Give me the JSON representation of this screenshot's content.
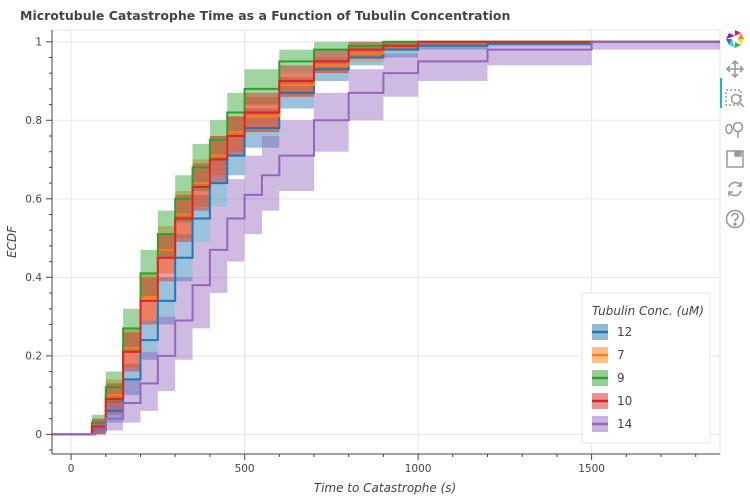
{
  "chart_data": {
    "type": "line",
    "title": "Microtubule Catastrophe Time as a Function of Tubulin Concentration",
    "xlabel": "Time to Catastrophe (s)",
    "ylabel": "ECDF",
    "xlim": [
      -55,
      1870
    ],
    "ylim": [
      -0.05,
      1.03
    ],
    "xticks": [
      0,
      500,
      1000,
      1500
    ],
    "xtick_labels": [
      "0",
      "500",
      "1000",
      "1500"
    ],
    "yticks": [
      0,
      0.2,
      0.4,
      0.6,
      0.8,
      1
    ],
    "ytick_labels": [
      "0",
      "0.2",
      "0.4",
      "0.6",
      "0.8",
      "1"
    ],
    "grid": true,
    "legend": {
      "title": "Tubulin Conc. (uM)",
      "placement": "bottom-right"
    },
    "series": [
      {
        "name": "12",
        "color": "#1f77b4",
        "band_color": "#1f77b4",
        "x": [
          -55,
          40,
          60,
          100,
          150,
          200,
          250,
          300,
          350,
          400,
          450,
          500,
          600,
          700,
          800,
          900,
          1000,
          1200,
          1500,
          1870
        ],
        "y": [
          0,
          0,
          0.01,
          0.06,
          0.14,
          0.24,
          0.34,
          0.45,
          0.55,
          0.64,
          0.71,
          0.78,
          0.87,
          0.93,
          0.96,
          0.98,
          0.99,
          0.995,
          1,
          1
        ],
        "lower": [
          0,
          0,
          0,
          0.03,
          0.1,
          0.19,
          0.28,
          0.39,
          0.49,
          0.58,
          0.66,
          0.73,
          0.83,
          0.9,
          0.94,
          0.96,
          0.98,
          0.99,
          0.998,
          1
        ],
        "upper": [
          0,
          0,
          0.02,
          0.09,
          0.18,
          0.29,
          0.4,
          0.51,
          0.61,
          0.7,
          0.77,
          0.83,
          0.91,
          0.96,
          0.98,
          0.99,
          1,
          1,
          1,
          1
        ]
      },
      {
        "name": "7",
        "color": "#ff7f0e",
        "band_color": "#ff7f0e",
        "x": [
          -55,
          40,
          60,
          100,
          150,
          200,
          250,
          300,
          350,
          400,
          450,
          500,
          600,
          700,
          800,
          900,
          1000,
          1200,
          1500,
          1870
        ],
        "y": [
          0,
          0,
          0.02,
          0.1,
          0.22,
          0.35,
          0.47,
          0.56,
          0.64,
          0.71,
          0.77,
          0.81,
          0.89,
          0.94,
          0.97,
          0.99,
          1,
          1,
          1,
          1
        ],
        "lower": [
          0,
          0,
          0,
          0.06,
          0.17,
          0.29,
          0.41,
          0.5,
          0.58,
          0.66,
          0.72,
          0.77,
          0.86,
          0.92,
          0.95,
          0.98,
          0.99,
          1,
          1,
          1
        ],
        "upper": [
          0,
          0,
          0.04,
          0.14,
          0.27,
          0.41,
          0.53,
          0.62,
          0.7,
          0.76,
          0.81,
          0.86,
          0.92,
          0.96,
          0.99,
          1,
          1,
          1,
          1,
          1
        ]
      },
      {
        "name": "9",
        "color": "#2ca02c",
        "band_color": "#2ca02c",
        "x": [
          -55,
          40,
          60,
          100,
          150,
          200,
          250,
          300,
          350,
          400,
          450,
          500,
          600,
          700,
          800,
          900,
          1000,
          1200,
          1500,
          1870
        ],
        "y": [
          0,
          0,
          0.03,
          0.12,
          0.27,
          0.41,
          0.51,
          0.6,
          0.68,
          0.75,
          0.82,
          0.88,
          0.95,
          0.98,
          0.99,
          1,
          1,
          1,
          1,
          1
        ],
        "lower": [
          0,
          0,
          0.01,
          0.08,
          0.21,
          0.35,
          0.45,
          0.54,
          0.62,
          0.7,
          0.77,
          0.84,
          0.92,
          0.96,
          0.98,
          0.99,
          1,
          1,
          1,
          1
        ],
        "upper": [
          0,
          0,
          0.05,
          0.16,
          0.32,
          0.47,
          0.57,
          0.66,
          0.74,
          0.8,
          0.87,
          0.93,
          0.98,
          1,
          1,
          1,
          1,
          1,
          1,
          1
        ]
      },
      {
        "name": "10",
        "color": "#d62728",
        "band_color": "#d62728",
        "x": [
          -55,
          40,
          60,
          100,
          150,
          200,
          250,
          300,
          350,
          400,
          450,
          500,
          600,
          700,
          800,
          900,
          1000,
          1200,
          1500,
          1870
        ],
        "y": [
          0,
          0,
          0.02,
          0.09,
          0.21,
          0.34,
          0.45,
          0.55,
          0.63,
          0.7,
          0.76,
          0.82,
          0.9,
          0.95,
          0.98,
          0.99,
          1,
          1,
          1,
          1
        ],
        "lower": [
          0,
          0,
          0,
          0.05,
          0.16,
          0.28,
          0.39,
          0.49,
          0.57,
          0.64,
          0.71,
          0.77,
          0.86,
          0.92,
          0.96,
          0.98,
          0.99,
          1,
          1,
          1
        ],
        "upper": [
          0,
          0,
          0.04,
          0.13,
          0.26,
          0.4,
          0.51,
          0.61,
          0.69,
          0.76,
          0.81,
          0.87,
          0.94,
          0.98,
          1,
          1,
          1,
          1,
          1,
          1
        ]
      },
      {
        "name": "14",
        "color": "#9467bd",
        "band_color": "#9467bd",
        "x": [
          -55,
          40,
          70,
          100,
          150,
          200,
          250,
          300,
          350,
          400,
          450,
          500,
          550,
          600,
          700,
          800,
          900,
          1000,
          1200,
          1500,
          1870
        ],
        "y": [
          0,
          0,
          0.01,
          0.04,
          0.08,
          0.13,
          0.2,
          0.29,
          0.38,
          0.47,
          0.55,
          0.61,
          0.66,
          0.71,
          0.8,
          0.87,
          0.92,
          0.95,
          0.98,
          1,
          1
        ],
        "lower": [
          0,
          0,
          0,
          0.01,
          0.03,
          0.06,
          0.11,
          0.19,
          0.27,
          0.36,
          0.44,
          0.51,
          0.57,
          0.62,
          0.72,
          0.8,
          0.86,
          0.9,
          0.94,
          0.98,
          1
        ],
        "upper": [
          0,
          0,
          0.03,
          0.08,
          0.14,
          0.21,
          0.3,
          0.4,
          0.49,
          0.58,
          0.65,
          0.71,
          0.76,
          0.8,
          0.87,
          0.93,
          0.97,
          0.99,
          1,
          1,
          1
        ]
      }
    ]
  },
  "toolbar": {
    "tools": [
      "bokeh-logo-icon",
      "pan-icon",
      "box-zoom-icon",
      "wheel-zoom-icon",
      "save-icon",
      "reset-icon",
      "help-icon"
    ]
  }
}
